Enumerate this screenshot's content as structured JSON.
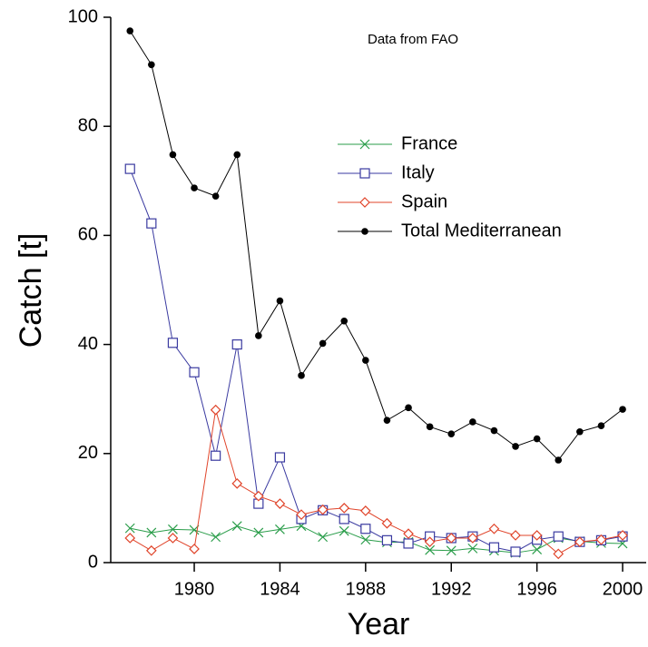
{
  "chart_data": {
    "type": "line",
    "annotation": "Data from FAO",
    "xlabel": "Year",
    "ylabel": "Catch [t]",
    "x": [
      1977,
      1978,
      1979,
      1980,
      1981,
      1982,
      1983,
      1984,
      1985,
      1986,
      1987,
      1988,
      1989,
      1990,
      1991,
      1992,
      1993,
      1994,
      1995,
      1996,
      1997,
      1998,
      1999,
      2000
    ],
    "series": [
      {
        "name": "France",
        "color": "#2a9d4a",
        "marker": "x",
        "values": [
          6.3,
          5.5,
          6.1,
          6,
          4.7,
          6.7,
          5.5,
          6.1,
          6.7,
          4.7,
          5.8,
          4.2,
          3.7,
          3.8,
          2.3,
          2.2,
          2.6,
          2.2,
          1.8,
          2.4,
          4.5,
          3.9,
          3.6,
          3.5
        ]
      },
      {
        "name": "Italy",
        "color": "#3a3aa0",
        "marker": "square",
        "values": [
          72.2,
          62.2,
          40.3,
          34.9,
          19.6,
          40,
          10.8,
          19.3,
          8,
          9.6,
          8,
          6.2,
          4.1,
          3.5,
          4.8,
          4.5,
          4.8,
          2.8,
          2,
          4.2,
          4.8,
          3.8,
          4.1,
          4.8
        ]
      },
      {
        "name": "Spain",
        "color": "#e0442a",
        "marker": "diamond",
        "values": [
          4.5,
          2.2,
          4.5,
          2.5,
          28,
          14.5,
          12.2,
          10.8,
          8.8,
          9.7,
          10,
          9.5,
          7.2,
          5.3,
          3.8,
          4.5,
          4.5,
          6.2,
          5,
          5,
          1.6,
          3.8,
          4.2,
          5
        ]
      },
      {
        "name": "Total Mediterranean",
        "color": "#000000",
        "marker": "circle",
        "values": [
          97.5,
          91.3,
          74.8,
          68.7,
          67.2,
          74.8,
          41.6,
          48,
          34.3,
          40.2,
          44.3,
          37.1,
          26.1,
          28.4,
          24.9,
          23.6,
          25.8,
          24.2,
          21.3,
          22.7,
          18.8,
          24,
          25.1,
          28.1
        ]
      }
    ],
    "xlim": [
      1976.1,
      2001.1
    ],
    "xticks": [
      1980,
      1984,
      1988,
      1992,
      1996,
      2000
    ],
    "ylim": [
      0,
      100
    ],
    "yticks": [
      0,
      20,
      40,
      60,
      80,
      100
    ]
  }
}
